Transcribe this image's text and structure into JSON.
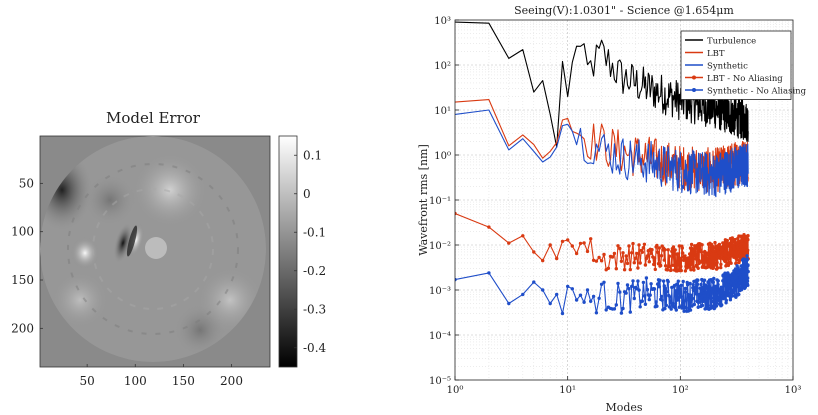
{
  "chart_data": [
    {
      "type": "heatmap",
      "title": "Model Error",
      "x_ticks": [
        "50",
        "100",
        "150",
        "200"
      ],
      "y_ticks": [
        "50",
        "100",
        "150",
        "200"
      ],
      "xlim": [
        1,
        240
      ],
      "ylim": [
        1,
        240
      ],
      "colorbar": {
        "ticks": [
          "0.1",
          "0",
          "-0.1",
          "-0.2",
          "-0.3",
          "-0.4"
        ],
        "range": [
          -0.45,
          0.15
        ],
        "colormap": "gray"
      },
      "pupil": {
        "center": [
          120,
          120
        ],
        "radius": 118,
        "obstruction_center": [
          120,
          118
        ],
        "obstruction_radius": 11
      }
    },
    {
      "type": "line",
      "title": "Seeing(V):1.0301\" - Science @1.654μm",
      "xlabel": "Modes",
      "ylabel": "Wavefront rms [nm]",
      "xscale": "log",
      "yscale": "log",
      "xlim": [
        1,
        1000
      ],
      "ylim": [
        1e-05,
        1000
      ],
      "x_tick_labels": [
        "10⁰",
        "10¹",
        "10²",
        "10³"
      ],
      "y_tick_labels": [
        "10⁻⁵",
        "10⁻⁴",
        "10⁻³",
        "10⁻²",
        "10⁻¹",
        "10⁰",
        "10¹",
        "10²",
        "10³"
      ],
      "grid": true,
      "legend_position": "top-right",
      "n_modes": 400,
      "series": [
        {
          "name": "Turbulence",
          "color": "#000000",
          "marker": "none",
          "anchors": [
            [
              1,
              900
            ],
            [
              2,
              850
            ],
            [
              3,
              140
            ],
            [
              4,
              220
            ],
            [
              5,
              25
            ],
            [
              6,
              45
            ],
            [
              7,
              8
            ],
            [
              8,
              1.5
            ],
            [
              9,
              120
            ],
            [
              10,
              20
            ],
            [
              12,
              400
            ],
            [
              15,
              80
            ],
            [
              20,
              200
            ],
            [
              30,
              60
            ],
            [
              50,
              35
            ],
            [
              100,
              18
            ],
            [
              200,
              12
            ],
            [
              400,
              6
            ]
          ],
          "spread_dex": 0.45
        },
        {
          "name": "LBT",
          "color": "#d93a12",
          "marker": "none",
          "anchors": [
            [
              1,
              15
            ],
            [
              2,
              17
            ],
            [
              3,
              1.6
            ],
            [
              4,
              2.8
            ],
            [
              5,
              1.7
            ],
            [
              6,
              0.85
            ],
            [
              7,
              1.2
            ],
            [
              8,
              1.9
            ],
            [
              9,
              6
            ],
            [
              10,
              6.5
            ],
            [
              15,
              2.5
            ],
            [
              20,
              2
            ],
            [
              30,
              1.3
            ],
            [
              50,
              1
            ],
            [
              100,
              0.6
            ],
            [
              200,
              0.5
            ],
            [
              400,
              0.9
            ]
          ],
          "spread_dex": 0.5
        },
        {
          "name": "Synthetic",
          "color": "#1f4ec9",
          "marker": "none",
          "anchors": [
            [
              1,
              8
            ],
            [
              2,
              10
            ],
            [
              3,
              1.3
            ],
            [
              4,
              2.3
            ],
            [
              5,
              1.2
            ],
            [
              6,
              0.7
            ],
            [
              7,
              0.9
            ],
            [
              8,
              1.5
            ],
            [
              9,
              4.5
            ],
            [
              10,
              4.8
            ],
            [
              15,
              2
            ],
            [
              20,
              1.5
            ],
            [
              30,
              1
            ],
            [
              50,
              0.8
            ],
            [
              100,
              0.5
            ],
            [
              200,
              0.4
            ],
            [
              400,
              0.7
            ]
          ],
          "spread_dex": 0.5
        },
        {
          "name": "LBT - No Aliasing",
          "color": "#d93a12",
          "marker": "dot",
          "anchors": [
            [
              1,
              0.05
            ],
            [
              2,
              0.025
            ],
            [
              3,
              0.011
            ],
            [
              4,
              0.016
            ],
            [
              5,
              0.007
            ],
            [
              6,
              0.0045
            ],
            [
              7,
              0.01
            ],
            [
              8,
              0.005
            ],
            [
              9,
              0.012
            ],
            [
              10,
              0.013
            ],
            [
              15,
              0.01
            ],
            [
              20,
              0.005
            ],
            [
              30,
              0.006
            ],
            [
              50,
              0.006
            ],
            [
              100,
              0.0055
            ],
            [
              200,
              0.006
            ],
            [
              300,
              0.008
            ],
            [
              400,
              0.01
            ]
          ],
          "spread_dex": 0.3
        },
        {
          "name": "Synthetic - No Aliasing",
          "color": "#1f4ec9",
          "marker": "dot",
          "anchors": [
            [
              1,
              0.0017
            ],
            [
              2,
              0.0024
            ],
            [
              3,
              0.0005
            ],
            [
              4,
              0.0008
            ],
            [
              5,
              0.0015
            ],
            [
              6,
              0.001
            ],
            [
              7,
              0.0005
            ],
            [
              8,
              0.0008
            ],
            [
              9,
              0.0003
            ],
            [
              10,
              0.0012
            ],
            [
              15,
              0.0006
            ],
            [
              20,
              0.0008
            ],
            [
              30,
              0.0007
            ],
            [
              50,
              0.0009
            ],
            [
              100,
              0.0008
            ],
            [
              200,
              0.0009
            ],
            [
              300,
              0.0015
            ],
            [
              400,
              0.003
            ]
          ],
          "spread_dex": 0.35
        }
      ]
    }
  ]
}
